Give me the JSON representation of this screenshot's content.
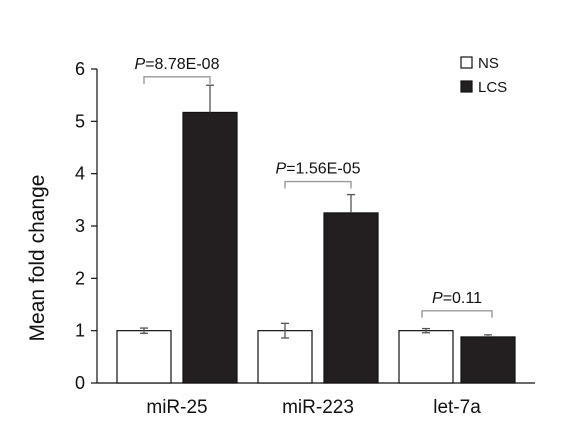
{
  "chart_data": {
    "type": "bar",
    "ylabel": "Mean fold change",
    "ylim": [
      0,
      6
    ],
    "yticks": [
      0,
      1,
      2,
      3,
      4,
      5,
      6
    ],
    "grid": false,
    "legend_position": "top-right",
    "categories": [
      "miR-25",
      "miR-223",
      "let-7a"
    ],
    "series": [
      {
        "name": "NS",
        "color": "#ffffff",
        "values": [
          1.0,
          1.0,
          1.0
        ],
        "errors": [
          0.05,
          0.14,
          0.04
        ]
      },
      {
        "name": "LCS",
        "color": "#231f20",
        "values": [
          5.17,
          3.25,
          0.88
        ],
        "errors": [
          0.52,
          0.35,
          0.04
        ]
      }
    ],
    "annotations": [
      {
        "category": "miR-25",
        "prefix": "P",
        "text": "=8.78E-08",
        "bracket_y": 5.85
      },
      {
        "category": "miR-223",
        "prefix": "P",
        "text": "=1.56E-05",
        "bracket_y": 3.85
      },
      {
        "category": "let-7a",
        "prefix": "P",
        "text": "=0.11",
        "bracket_y": 1.38
      }
    ]
  }
}
